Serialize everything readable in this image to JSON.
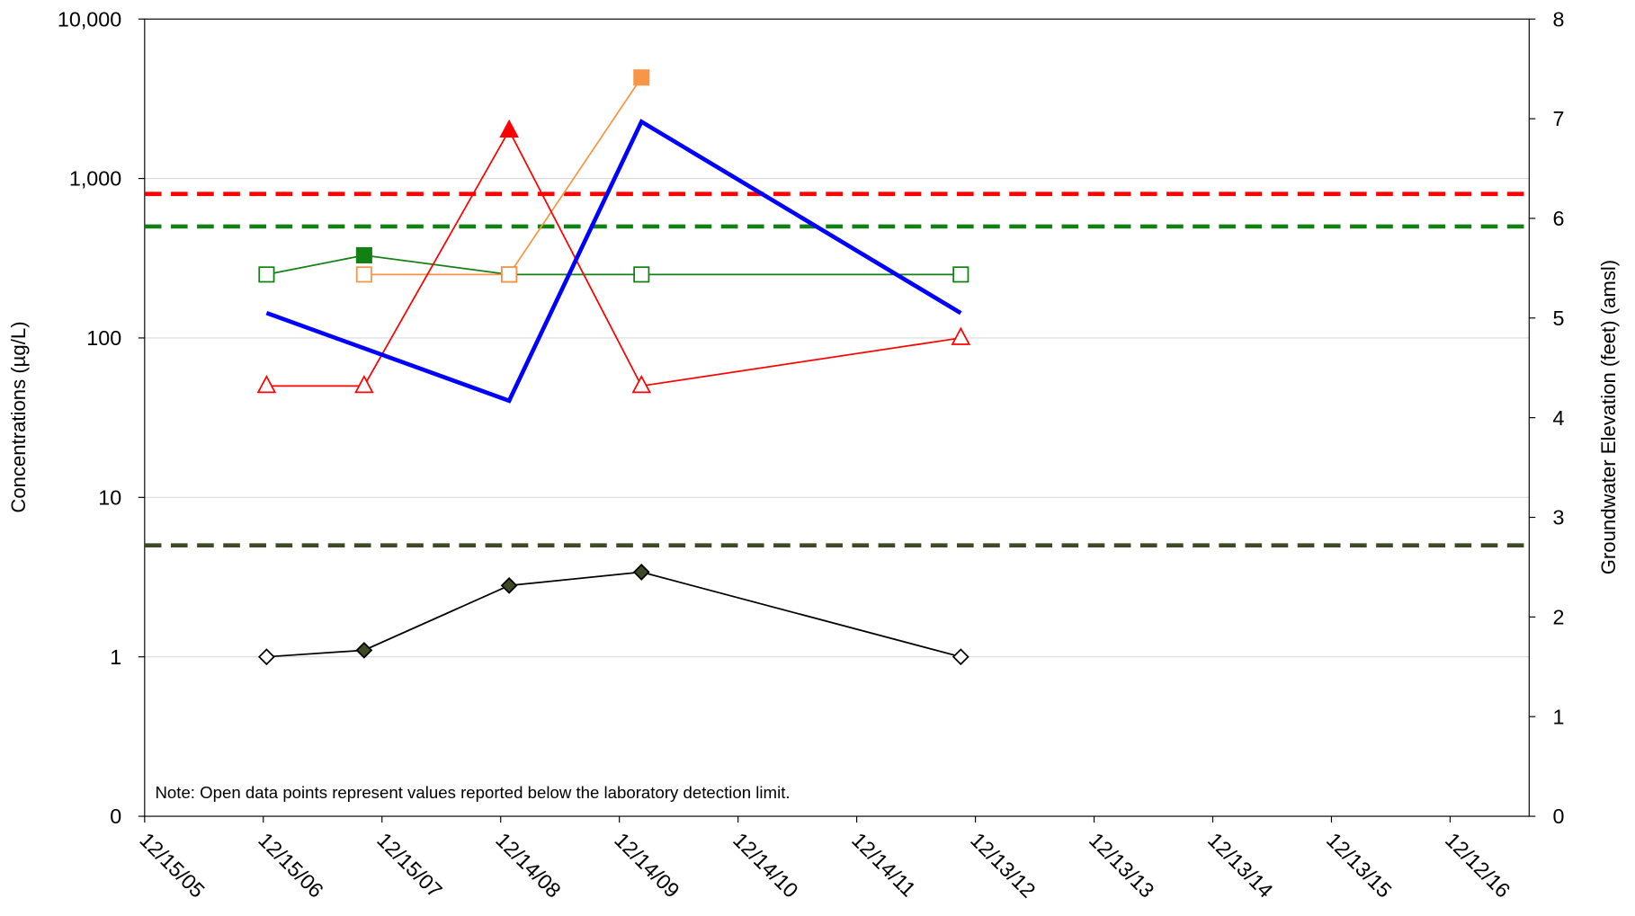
{
  "chart_data": {
    "type": "line",
    "y_label": "Concentrations (µg/L)",
    "y2_label": "Groundwater Elevation (feet) (amsl)",
    "annotation": "Note: Open data points represent values reported below the laboratory detection limit.",
    "log_y": true,
    "grid": true,
    "xlim": [
      "2005-12-15",
      "2017-08-12"
    ],
    "xticks": [
      {
        "value": "2005-12-15",
        "label": "12/15/05"
      },
      {
        "value": "2006-12-15",
        "label": "12/15/06"
      },
      {
        "value": "2007-12-15",
        "label": "12/15/07"
      },
      {
        "value": "2008-12-14",
        "label": "12/14/08"
      },
      {
        "value": "2009-12-14",
        "label": "12/14/09"
      },
      {
        "value": "2010-12-14",
        "label": "12/14/10"
      },
      {
        "value": "2011-12-14",
        "label": "12/14/11"
      },
      {
        "value": "2012-12-13",
        "label": "12/13/12"
      },
      {
        "value": "2013-12-13",
        "label": "12/13/13"
      },
      {
        "value": "2014-12-13",
        "label": "12/13/14"
      },
      {
        "value": "2015-12-13",
        "label": "12/13/15"
      },
      {
        "value": "2016-12-12",
        "label": "12/12/16"
      }
    ],
    "ylim": [
      0.1,
      10000
    ],
    "yticks": [
      {
        "value": 0.1,
        "label": "0"
      },
      1,
      10,
      100,
      {
        "value": 1000,
        "label": "1,000"
      },
      {
        "value": 10000,
        "label": "10,000"
      }
    ],
    "y2lim": [
      0,
      8
    ],
    "y2ticks": [
      0,
      1,
      2,
      3,
      4,
      5,
      6,
      7,
      8
    ],
    "reference_lines": [
      {
        "value": 800,
        "color": "#ff0000"
      },
      {
        "value": 500,
        "color": "#138013"
      },
      {
        "value": 5,
        "color": "#3d4a25"
      }
    ],
    "series": [
      {
        "color": "#138013",
        "marker": "square",
        "line_width": 1.5,
        "x": [
          "2006-12-25",
          "2007-10-21",
          "2009-01-09",
          "2010-02-20",
          "2012-10-29"
        ],
        "values": [
          250,
          330,
          250,
          250,
          250
        ],
        "open": [
          true,
          false,
          true,
          true,
          true
        ]
      },
      {
        "color": "#f79646",
        "marker": "square",
        "line_width": 1.5,
        "x": [
          "2007-10-21",
          "2009-01-09",
          "2010-02-20"
        ],
        "values": [
          250,
          250,
          4300
        ],
        "open": [
          true,
          true,
          false
        ]
      },
      {
        "color": "#ff0000",
        "marker": "triangle",
        "line_width": 1.5,
        "x": [
          "2006-12-25",
          "2007-10-21",
          "2009-01-09",
          "2010-02-20",
          "2012-10-29"
        ],
        "values": [
          50,
          50,
          2000,
          50,
          100
        ],
        "open": [
          true,
          true,
          false,
          true,
          true
        ]
      },
      {
        "color": "#000000",
        "fill": "#3d4a25",
        "marker": "diamond",
        "line_width": 1.5,
        "x": [
          "2006-12-25",
          "2007-10-21",
          "2009-01-09",
          "2010-02-20",
          "2012-10-29"
        ],
        "values": [
          1,
          1.1,
          2.8,
          3.4,
          1
        ],
        "open": [
          true,
          false,
          false,
          false,
          true
        ]
      },
      {
        "color": "#0000ff",
        "line_width": 4,
        "axis": "y2",
        "x": [
          "2006-12-25",
          "2009-01-09",
          "2010-02-20",
          "2012-10-29"
        ],
        "values": [
          5.05,
          4.17,
          6.97,
          5.05
        ]
      }
    ]
  }
}
